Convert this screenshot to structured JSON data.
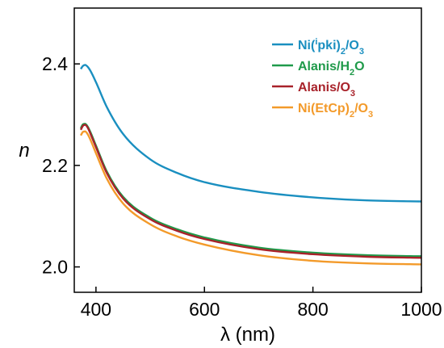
{
  "chart_data": {
    "type": "line",
    "xlabel": "λ (nm)",
    "ylabel": "n",
    "xlim": [
      360,
      1000
    ],
    "ylim": [
      1.95,
      2.51
    ],
    "xticks": [
      400,
      600,
      800,
      1000
    ],
    "xtick_labels": [
      "400",
      "600",
      "800",
      "1000"
    ],
    "yticks": [
      2.0,
      2.2,
      2.4
    ],
    "ytick_labels": [
      "2.0",
      "2.2",
      "2.4"
    ],
    "grid": false,
    "legend_position": "top-right",
    "series": [
      {
        "name": "Ni(ⁱpki)₂/O₃",
        "legend": {
          "base": "Ni(",
          "sup": "i",
          "mid": "pki)",
          "sub1": "2",
          "mid2": "/O",
          "sub2": "3"
        },
        "color": "#1a8fc0",
        "x": [
          372,
          376,
          380,
          385,
          390,
          400,
          420,
          450,
          500,
          550,
          600,
          700,
          800,
          900,
          1000
        ],
        "y": [
          2.39,
          2.396,
          2.398,
          2.394,
          2.386,
          2.364,
          2.315,
          2.262,
          2.212,
          2.185,
          2.167,
          2.148,
          2.137,
          2.131,
          2.129
        ]
      },
      {
        "name": "Alanis/H₂O",
        "legend": {
          "base": "Alanis/H",
          "sub1": "2",
          "mid": "O"
        },
        "color": "#1f9a4a",
        "x": [
          372,
          376,
          380,
          385,
          390,
          400,
          420,
          450,
          500,
          550,
          600,
          700,
          800,
          900,
          1000
        ],
        "y": [
          2.273,
          2.281,
          2.282,
          2.276,
          2.265,
          2.239,
          2.188,
          2.138,
          2.097,
          2.074,
          2.058,
          2.038,
          2.028,
          2.023,
          2.021
        ]
      },
      {
        "name": "Alanis/O₃",
        "legend": {
          "base": "Alanis/O",
          "sub1": "3"
        },
        "color": "#a8222a",
        "x": [
          372,
          376,
          380,
          385,
          390,
          400,
          420,
          450,
          500,
          550,
          600,
          700,
          800,
          900,
          1000
        ],
        "y": [
          2.27,
          2.278,
          2.28,
          2.274,
          2.262,
          2.236,
          2.185,
          2.135,
          2.094,
          2.071,
          2.055,
          2.035,
          2.025,
          2.02,
          2.018
        ]
      },
      {
        "name": "Ni(EtCp)₂/O₃",
        "legend": {
          "base": "Ni(EtCp)",
          "sub1": "2",
          "mid": "/O",
          "sub2": "3"
        },
        "color": "#f39a2a",
        "x": [
          372,
          376,
          380,
          385,
          390,
          400,
          420,
          450,
          500,
          550,
          600,
          700,
          800,
          900,
          1000
        ],
        "y": [
          2.259,
          2.266,
          2.267,
          2.261,
          2.25,
          2.224,
          2.174,
          2.125,
          2.084,
          2.06,
          2.044,
          2.023,
          2.012,
          2.007,
          2.005
        ]
      }
    ]
  }
}
